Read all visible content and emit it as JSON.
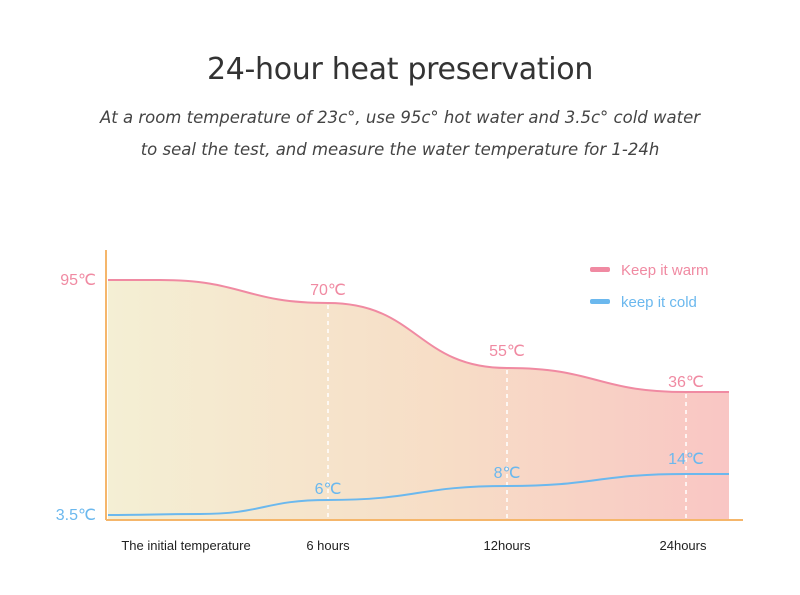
{
  "header": {
    "title": "24-hour heat preservation",
    "subtitle_line1": "At a room temperature of 23c°, use 95c° hot water and 3.5c° cold water",
    "subtitle_line2": "to seal the test, and measure the water temperature for 1-24h"
  },
  "colors": {
    "warm": "#f08aa2",
    "cold": "#6bb8ee",
    "axis": "#f5b66b",
    "fill_left": "#f4efd4",
    "fill_mid": "#f7ddc6",
    "fill_right": "#f9c6c4"
  },
  "chart_data": {
    "type": "area",
    "categories": [
      "The initial temperature",
      "6 hours",
      "12hours",
      "24hours"
    ],
    "y_axis_ticks": [
      "95℃",
      "3.5℃"
    ],
    "ylim": [
      3.5,
      95
    ],
    "grid": false,
    "legend_position": "top-right",
    "series": [
      {
        "name": "Keep it warm",
        "values": [
          95,
          70,
          55,
          36
        ],
        "labels": [
          "",
          "70℃",
          "55℃",
          "36℃"
        ],
        "color": "#f08aa2"
      },
      {
        "name": "keep it cold",
        "values": [
          3.5,
          6,
          8,
          14
        ],
        "labels": [
          "",
          "6℃",
          "8℃",
          "14℃"
        ],
        "color": "#6bb8ee"
      }
    ]
  }
}
